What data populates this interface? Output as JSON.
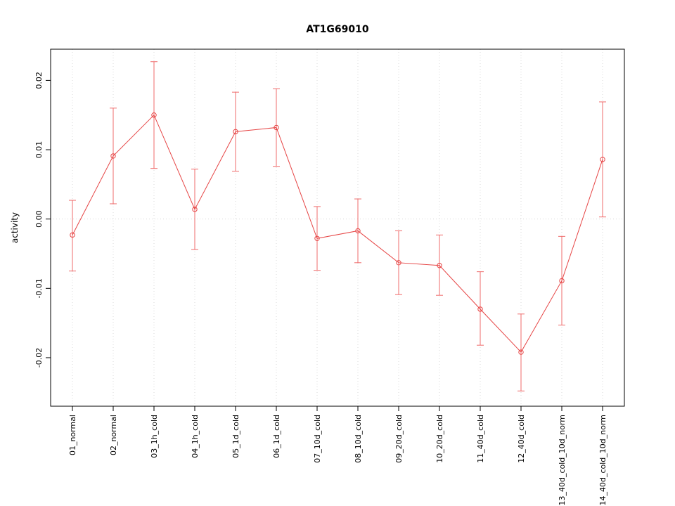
{
  "chart_data": {
    "type": "line",
    "title": "AT1G69010",
    "xlabel": "",
    "ylabel": "activity",
    "categories": [
      "01_normal",
      "02_normal",
      "03_1h_cold",
      "04_1h_cold",
      "05_1d_cold",
      "06_1d_cold",
      "07_10d_cold",
      "08_10d_cold",
      "09_20d_cold",
      "10_20d_cold",
      "11_40d_cold",
      "12_40d_cold",
      "13_40d_cold_10d_norm",
      "14_40d_cold_10d_norm"
    ],
    "series": [
      {
        "name": "AT1G69010 activity",
        "values": [
          -0.0023,
          0.0091,
          0.015,
          0.0014,
          0.0126,
          0.0132,
          -0.0028,
          -0.0017,
          -0.0063,
          -0.0067,
          -0.013,
          -0.0192,
          -0.0089,
          0.0086
        ],
        "error_low": [
          -0.0075,
          0.0022,
          0.0073,
          -0.0044,
          0.0069,
          0.0076,
          -0.0074,
          -0.0063,
          -0.0109,
          -0.011,
          -0.0182,
          -0.0248,
          -0.0153,
          0.0003
        ],
        "error_high": [
          0.0027,
          0.016,
          0.0227,
          0.0072,
          0.0183,
          0.0188,
          0.0018,
          0.0029,
          -0.0017,
          -0.0023,
          -0.0076,
          -0.0137,
          -0.0025,
          0.0169
        ]
      }
    ],
    "ylim": [
      -0.027,
      0.0245
    ],
    "yticks": [
      -0.02,
      -0.01,
      0,
      0.01,
      0.02
    ],
    "grid": {
      "vertical": "each-category",
      "horizontal_at": [
        0
      ],
      "style": "dotted"
    },
    "legend": "none",
    "colors": {
      "line": "#e64545",
      "marker": "#e64545",
      "error_bar": "#ef6b6b",
      "grid": "#d8d8d8",
      "frame": "#000000",
      "background": "#ffffff"
    }
  }
}
